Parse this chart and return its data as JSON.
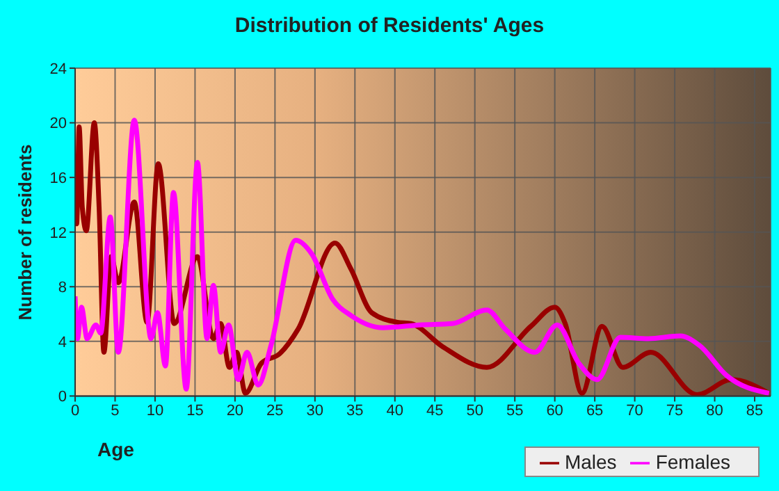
{
  "chart_data": {
    "type": "line",
    "title": "Distribution of Residents' Ages",
    "xlabel": "Age",
    "ylabel": "Number of residents",
    "xlim": [
      0,
      87
    ],
    "xticks": [
      0,
      5,
      10,
      15,
      20,
      25,
      30,
      35,
      40,
      45,
      50,
      55,
      60,
      65,
      70,
      75,
      80,
      85
    ],
    "ylim": [
      0,
      24
    ],
    "yticks": [
      0,
      4,
      8,
      12,
      16,
      20,
      24
    ],
    "grid": true,
    "legend": "bottom right",
    "marker": "none",
    "line_style": "solid",
    "series": [
      {
        "name": "Males",
        "color": "#990000",
        "x": [
          0,
          0.2,
          0.5,
          0.9,
          1.4,
          2.4,
          3,
          3.6,
          4.5,
          5.4,
          7.4,
          9,
          10.4,
          12.4,
          15.3,
          17.3,
          18.2,
          19.3,
          20.2,
          21.3,
          23.3,
          25.6,
          27.9,
          32.5,
          34.5,
          37.1,
          40.3,
          42,
          46,
          51.5,
          57,
          60,
          61.3,
          63.4,
          65.9,
          68.5,
          72,
          77.8,
          82.1,
          86.8
        ],
        "values": [
          15.1,
          12.6,
          19.7,
          13.8,
          12.1,
          20,
          13.8,
          3.2,
          10.2,
          8.3,
          14.2,
          5.4,
          17,
          5.3,
          10.2,
          4.2,
          5.3,
          2.1,
          3.2,
          0.2,
          2.4,
          3.1,
          4.9,
          11.2,
          9.3,
          6.1,
          5.4,
          5.3,
          3.6,
          2.1,
          5.1,
          6.5,
          5.3,
          0.2,
          5.1,
          2.1,
          3.2,
          0.1,
          1.2,
          0.2
        ]
      },
      {
        "name": "Females",
        "color": "#ff00ff",
        "x": [
          0,
          0.3,
          0.8,
          1.5,
          2.6,
          3.2,
          4.4,
          5.4,
          7.4,
          9.5,
          10.3,
          11.3,
          12.3,
          13.9,
          15.3,
          16.5,
          17.3,
          18.2,
          19.2,
          20.4,
          21.5,
          22.9,
          24.5,
          27.6,
          29.6,
          32.2,
          34.5,
          38.5,
          43.1,
          47.2,
          51.5,
          53.8,
          57.5,
          60.3,
          63,
          65.3,
          68.2,
          71.7,
          75.7,
          78.1,
          81.5,
          86.8
        ],
        "values": [
          7.3,
          4.2,
          6.5,
          4.2,
          5.2,
          4.6,
          13.1,
          3.2,
          20.2,
          4.2,
          6.1,
          2.2,
          14.9,
          0.5,
          17.1,
          4.2,
          8.1,
          3.2,
          5.2,
          1.2,
          3.2,
          0.8,
          3.7,
          11.4,
          10.4,
          7.1,
          5.9,
          5,
          5.2,
          5.3,
          6.3,
          4.9,
          3.2,
          5.2,
          2.4,
          1.2,
          4.3,
          4.2,
          4.4,
          3.7,
          1.5,
          0.2
        ]
      }
    ]
  }
}
